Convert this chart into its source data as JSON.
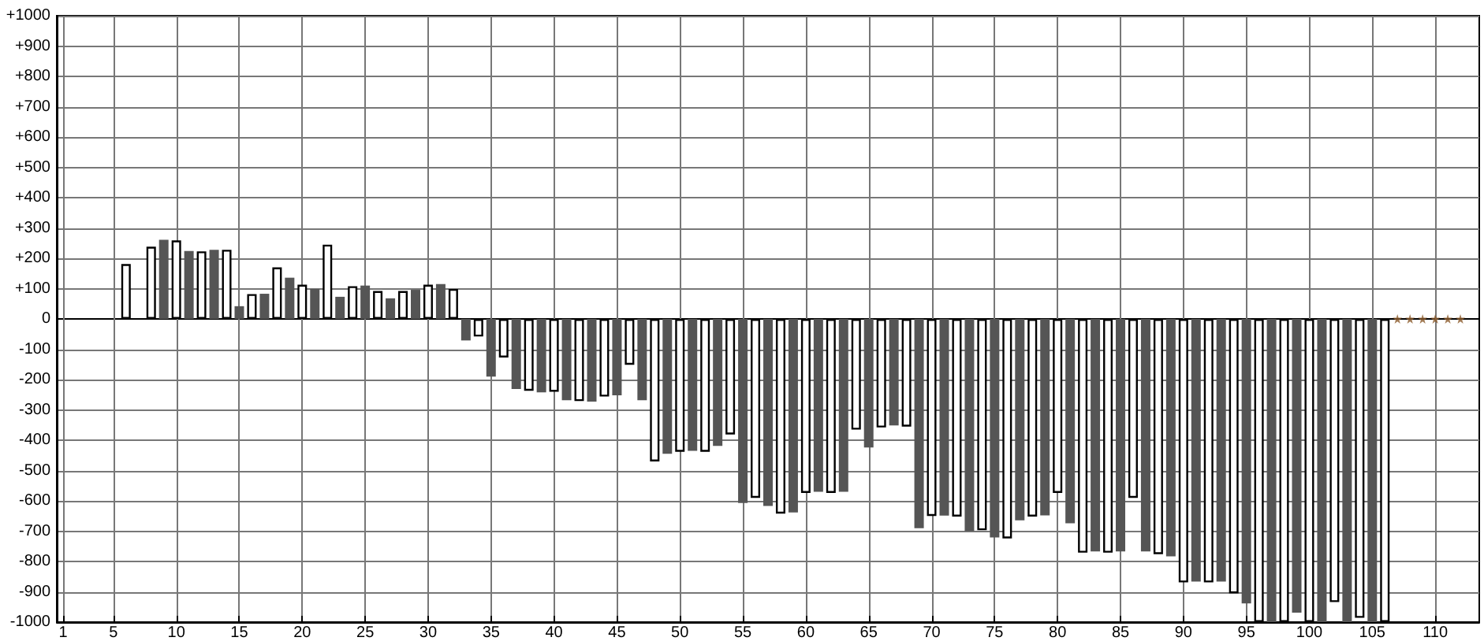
{
  "chart_data": {
    "type": "bar",
    "grid": true,
    "xlim": [
      0.5,
      113.5
    ],
    "xticks": [
      1,
      5,
      10,
      15,
      20,
      25,
      30,
      35,
      40,
      45,
      50,
      55,
      60,
      65,
      70,
      75,
      80,
      85,
      90,
      95,
      100,
      105,
      110
    ],
    "ylim": [
      -1000,
      1000
    ],
    "yticks": [
      {
        "value": -1000,
        "label": "-1000"
      },
      {
        "value": -900,
        "label": "-900"
      },
      {
        "value": -800,
        "label": "-800"
      },
      {
        "value": -700,
        "label": "-700"
      },
      {
        "value": -600,
        "label": "-600"
      },
      {
        "value": -500,
        "label": "-500"
      },
      {
        "value": -400,
        "label": "-400"
      },
      {
        "value": -300,
        "label": "-300"
      },
      {
        "value": -200,
        "label": "-200"
      },
      {
        "value": -100,
        "label": "-100"
      },
      {
        "value": 0,
        "label": "0"
      },
      {
        "value": 100,
        "label": "+100"
      },
      {
        "value": 200,
        "label": "+200"
      },
      {
        "value": 300,
        "label": "+300"
      },
      {
        "value": 400,
        "label": "+400"
      },
      {
        "value": 500,
        "label": "+500"
      },
      {
        "value": 600,
        "label": "+600"
      },
      {
        "value": 700,
        "label": "+700"
      },
      {
        "value": 800,
        "label": "+800"
      },
      {
        "value": 900,
        "label": "+900"
      },
      {
        "value": 1000,
        "label": "+1000"
      }
    ],
    "series": [
      {
        "x": [
          6,
          7,
          8,
          9,
          10,
          11,
          12,
          13,
          14,
          15,
          16,
          17,
          18,
          19,
          20,
          21,
          22,
          23,
          24,
          25,
          26,
          27,
          28,
          29,
          30,
          31,
          32,
          33,
          34,
          35,
          36,
          37,
          38,
          39,
          40,
          41,
          42,
          43,
          44,
          45,
          46,
          47,
          48,
          49,
          50,
          51,
          52,
          53,
          54,
          55,
          56,
          57,
          58,
          59,
          60,
          61,
          62,
          63,
          64,
          65,
          66,
          67,
          68,
          69,
          70,
          71,
          72,
          73,
          74,
          75,
          76,
          77,
          78,
          79,
          80,
          81,
          82,
          83,
          84,
          85,
          86,
          87,
          88,
          89,
          90,
          91,
          92,
          93,
          94,
          95,
          96,
          97,
          98,
          99,
          100,
          101,
          102,
          103,
          104,
          105,
          106
        ],
        "values": [
          181,
          null,
          238,
          261,
          259,
          224,
          223,
          228,
          228,
          42,
          82,
          83,
          170,
          136,
          113,
          99,
          245,
          73,
          108,
          110,
          92,
          68,
          92,
          96,
          113,
          115,
          99,
          -71,
          -58,
          -190,
          -127,
          -231,
          -237,
          -242,
          -240,
          -268,
          -271,
          -273,
          -256,
          -252,
          -151,
          -268,
          -470,
          -445,
          -438,
          -435,
          -438,
          -419,
          -381,
          -607,
          -590,
          -617,
          -642,
          -638,
          -574,
          -570,
          -574,
          -570,
          -365,
          -424,
          -358,
          -351,
          -355,
          -690,
          -650,
          -649,
          -652,
          -700,
          -697,
          -721,
          -724,
          -664,
          -652,
          -648,
          -574,
          -674,
          -771,
          -767,
          -771,
          -767,
          -590,
          -767,
          -776,
          -783,
          -869,
          -866,
          -869,
          -866,
          -905,
          -938,
          -1000,
          -1000,
          -1000,
          -969,
          -1000,
          -1000,
          -934,
          -1000,
          -986,
          -1000,
          -1000
        ],
        "colors": [
          "#ffffff",
          "#555555",
          "#ffffff",
          "#555555",
          "#ffffff",
          "#555555",
          "#ffffff",
          "#555555",
          "#ffffff",
          "#555555",
          "#ffffff",
          "#555555",
          "#ffffff",
          "#555555",
          "#ffffff",
          "#555555",
          "#ffffff",
          "#555555",
          "#ffffff",
          "#555555",
          "#ffffff",
          "#555555",
          "#ffffff",
          "#555555",
          "#ffffff",
          "#555555",
          "#ffffff",
          "#555555",
          "#ffffff",
          "#555555",
          "#ffffff",
          "#555555",
          "#ffffff",
          "#555555",
          "#ffffff",
          "#555555",
          "#ffffff",
          "#555555",
          "#ffffff",
          "#555555",
          "#ffffff",
          "#555555",
          "#ffffff",
          "#555555",
          "#ffffff",
          "#555555",
          "#ffffff",
          "#555555",
          "#ffffff",
          "#555555",
          "#ffffff",
          "#555555",
          "#ffffff",
          "#555555",
          "#ffffff",
          "#555555",
          "#ffffff",
          "#555555",
          "#ffffff",
          "#555555",
          "#ffffff",
          "#555555",
          "#ffffff",
          "#555555",
          "#ffffff",
          "#555555",
          "#ffffff",
          "#555555",
          "#ffffff",
          "#555555",
          "#ffffff",
          "#555555",
          "#ffffff",
          "#555555",
          "#ffffff",
          "#555555",
          "#ffffff",
          "#555555",
          "#ffffff",
          "#555555",
          "#ffffff",
          "#555555",
          "#ffffff",
          "#555555",
          "#ffffff",
          "#555555",
          "#ffffff",
          "#555555",
          "#ffffff",
          "#555555",
          "#ffffff",
          "#555555",
          "#ffffff",
          "#555555",
          "#ffffff",
          "#555555",
          "#ffffff",
          "#555555",
          "#ffffff",
          "#555555",
          "#ffffff"
        ]
      },
      {
        "type": "scatter",
        "marker": "star",
        "color": "#8b5a2b",
        "x": [
          107,
          108,
          109,
          110,
          111,
          112
        ],
        "values": [
          0,
          0,
          0,
          0,
          0,
          0
        ]
      }
    ]
  }
}
